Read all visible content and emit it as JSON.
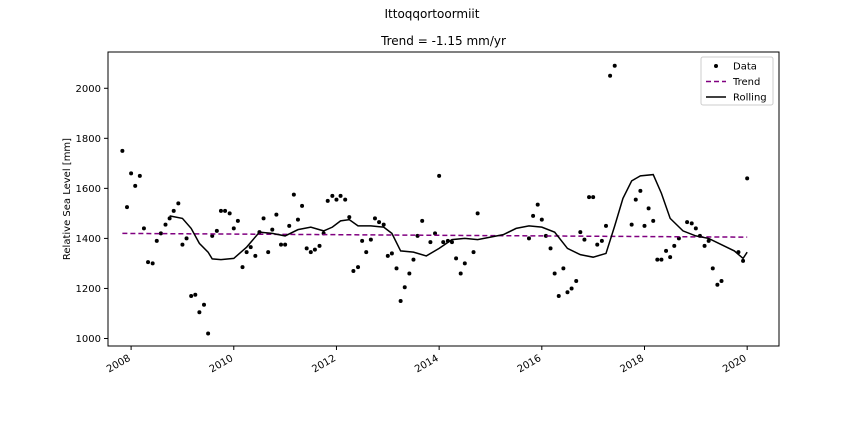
{
  "figure": {
    "suptitle": "Ittoqqortoormiit",
    "title": "Trend = -1.15 mm/yr"
  },
  "chart_data": {
    "type": "scatter",
    "title": "Trend = -1.15 mm/yr",
    "xlabel": "",
    "ylabel": "Relative Sea Level [mm]",
    "x_axis": {
      "kind": "date",
      "ticks": [
        2008,
        2010,
        2012,
        2014,
        2016,
        2018,
        2020
      ],
      "tick_labels": [
        "2008",
        "2010",
        "2012",
        "2014",
        "2016",
        "2018",
        "2020"
      ],
      "xlim": [
        2007.55,
        2020.62
      ],
      "tick_label_rotation": 30
    },
    "y_axis": {
      "ticks": [
        1000,
        1200,
        1400,
        1600,
        1800,
        2000
      ],
      "tick_labels": [
        "1000",
        "1200",
        "1400",
        "1600",
        "1800",
        "2000"
      ],
      "ylim": [
        970,
        2145
      ]
    },
    "grid": false,
    "legend": {
      "placement": "top-right",
      "entries": [
        {
          "label": "Data",
          "marker": "dot",
          "color": "#000000"
        },
        {
          "label": "Trend",
          "line": "dashed",
          "color": "#800080"
        },
        {
          "label": "Rolling",
          "line": "solid",
          "color": "#000000"
        }
      ]
    },
    "series": [
      {
        "name": "Data",
        "style": "points",
        "color": "#000000",
        "points": [
          [
            2007.83,
            1750
          ],
          [
            2007.92,
            1525
          ],
          [
            2008.0,
            1660
          ],
          [
            2008.08,
            1610
          ],
          [
            2008.17,
            1650
          ],
          [
            2008.25,
            1440
          ],
          [
            2008.33,
            1305
          ],
          [
            2008.42,
            1300
          ],
          [
            2008.5,
            1390
          ],
          [
            2008.58,
            1420
          ],
          [
            2008.67,
            1455
          ],
          [
            2008.75,
            1480
          ],
          [
            2008.83,
            1510
          ],
          [
            2008.92,
            1540
          ],
          [
            2009.0,
            1375
          ],
          [
            2009.08,
            1400
          ],
          [
            2009.17,
            1170
          ],
          [
            2009.25,
            1175
          ],
          [
            2009.33,
            1105
          ],
          [
            2009.42,
            1135
          ],
          [
            2009.5,
            1020
          ],
          [
            2009.58,
            1410
          ],
          [
            2009.67,
            1430
          ],
          [
            2009.75,
            1510
          ],
          [
            2009.83,
            1510
          ],
          [
            2009.92,
            1500
          ],
          [
            2010.0,
            1440
          ],
          [
            2010.08,
            1470
          ],
          [
            2010.17,
            1285
          ],
          [
            2010.25,
            1345
          ],
          [
            2010.33,
            1365
          ],
          [
            2010.42,
            1330
          ],
          [
            2010.5,
            1425
          ],
          [
            2010.58,
            1480
          ],
          [
            2010.67,
            1345
          ],
          [
            2010.75,
            1435
          ],
          [
            2010.83,
            1495
          ],
          [
            2010.92,
            1375
          ],
          [
            2011.0,
            1375
          ],
          [
            2011.08,
            1450
          ],
          [
            2011.17,
            1575
          ],
          [
            2011.25,
            1475
          ],
          [
            2011.33,
            1530
          ],
          [
            2011.42,
            1360
          ],
          [
            2011.5,
            1345
          ],
          [
            2011.58,
            1355
          ],
          [
            2011.67,
            1370
          ],
          [
            2011.75,
            1420
          ],
          [
            2011.83,
            1550
          ],
          [
            2011.92,
            1570
          ],
          [
            2012.0,
            1555
          ],
          [
            2012.08,
            1570
          ],
          [
            2012.17,
            1555
          ],
          [
            2012.25,
            1485
          ],
          [
            2012.33,
            1270
          ],
          [
            2012.42,
            1285
          ],
          [
            2012.5,
            1390
          ],
          [
            2012.58,
            1345
          ],
          [
            2012.67,
            1395
          ],
          [
            2012.75,
            1480
          ],
          [
            2012.83,
            1465
          ],
          [
            2012.92,
            1455
          ],
          [
            2013.0,
            1330
          ],
          [
            2013.08,
            1340
          ],
          [
            2013.17,
            1280
          ],
          [
            2013.25,
            1150
          ],
          [
            2013.33,
            1205
          ],
          [
            2013.42,
            1260
          ],
          [
            2013.5,
            1315
          ],
          [
            2013.58,
            1410
          ],
          [
            2013.67,
            1470
          ],
          [
            2013.83,
            1385
          ],
          [
            2013.92,
            1420
          ],
          [
            2014.0,
            1650
          ],
          [
            2014.08,
            1385
          ],
          [
            2014.17,
            1390
          ],
          [
            2014.25,
            1385
          ],
          [
            2014.33,
            1320
          ],
          [
            2014.42,
            1260
          ],
          [
            2014.5,
            1300
          ],
          [
            2014.67,
            1345
          ],
          [
            2014.75,
            1500
          ],
          [
            2015.75,
            1400
          ],
          [
            2015.83,
            1490
          ],
          [
            2015.92,
            1535
          ],
          [
            2016.0,
            1475
          ],
          [
            2016.08,
            1410
          ],
          [
            2016.17,
            1360
          ],
          [
            2016.25,
            1260
          ],
          [
            2016.33,
            1170
          ],
          [
            2016.42,
            1280
          ],
          [
            2016.5,
            1185
          ],
          [
            2016.58,
            1200
          ],
          [
            2016.67,
            1230
          ],
          [
            2016.75,
            1425
          ],
          [
            2016.83,
            1395
          ],
          [
            2016.92,
            1565
          ],
          [
            2017.0,
            1565
          ],
          [
            2017.08,
            1375
          ],
          [
            2017.17,
            1390
          ],
          [
            2017.25,
            1450
          ],
          [
            2017.33,
            2050
          ],
          [
            2017.42,
            2090
          ],
          [
            2017.75,
            1455
          ],
          [
            2017.83,
            1555
          ],
          [
            2017.92,
            1590
          ],
          [
            2018.0,
            1450
          ],
          [
            2018.08,
            1520
          ],
          [
            2018.17,
            1470
          ],
          [
            2018.25,
            1315
          ],
          [
            2018.33,
            1315
          ],
          [
            2018.42,
            1350
          ],
          [
            2018.5,
            1325
          ],
          [
            2018.58,
            1370
          ],
          [
            2018.67,
            1400
          ],
          [
            2018.83,
            1465
          ],
          [
            2018.92,
            1460
          ],
          [
            2019.0,
            1440
          ],
          [
            2019.08,
            1410
          ],
          [
            2019.17,
            1370
          ],
          [
            2019.25,
            1390
          ],
          [
            2019.33,
            1280
          ],
          [
            2019.42,
            1215
          ],
          [
            2019.5,
            1230
          ],
          [
            2019.83,
            1345
          ],
          [
            2019.92,
            1310
          ],
          [
            2020.0,
            1640
          ]
        ]
      },
      {
        "name": "Trend",
        "style": "dashed",
        "color": "#800080",
        "points": [
          [
            2007.83,
            1420
          ],
          [
            2020.0,
            1405
          ]
        ]
      },
      {
        "name": "Rolling",
        "style": "line",
        "color": "#000000",
        "points": [
          [
            2008.75,
            1490
          ],
          [
            2009.0,
            1480
          ],
          [
            2009.17,
            1440
          ],
          [
            2009.33,
            1380
          ],
          [
            2009.5,
            1345
          ],
          [
            2009.58,
            1318
          ],
          [
            2009.75,
            1315
          ],
          [
            2010.0,
            1320
          ],
          [
            2010.25,
            1365
          ],
          [
            2010.5,
            1425
          ],
          [
            2010.75,
            1420
          ],
          [
            2011.0,
            1410
          ],
          [
            2011.25,
            1435
          ],
          [
            2011.5,
            1445
          ],
          [
            2011.75,
            1430
          ],
          [
            2011.92,
            1445
          ],
          [
            2012.08,
            1470
          ],
          [
            2012.25,
            1475
          ],
          [
            2012.42,
            1450
          ],
          [
            2012.67,
            1450
          ],
          [
            2012.92,
            1445
          ],
          [
            2013.08,
            1420
          ],
          [
            2013.25,
            1350
          ],
          [
            2013.5,
            1345
          ],
          [
            2013.75,
            1330
          ],
          [
            2014.0,
            1360
          ],
          [
            2014.25,
            1395
          ],
          [
            2014.5,
            1400
          ],
          [
            2014.75,
            1395
          ],
          [
            2015.0,
            1405
          ],
          [
            2015.25,
            1415
          ],
          [
            2015.5,
            1440
          ],
          [
            2015.75,
            1450
          ],
          [
            2016.0,
            1445
          ],
          [
            2016.25,
            1425
          ],
          [
            2016.5,
            1360
          ],
          [
            2016.75,
            1335
          ],
          [
            2017.0,
            1325
          ],
          [
            2017.25,
            1340
          ],
          [
            2017.42,
            1450
          ],
          [
            2017.58,
            1560
          ],
          [
            2017.75,
            1630
          ],
          [
            2017.92,
            1650
          ],
          [
            2018.17,
            1655
          ],
          [
            2018.33,
            1580
          ],
          [
            2018.5,
            1480
          ],
          [
            2018.75,
            1430
          ],
          [
            2019.0,
            1410
          ],
          [
            2019.25,
            1400
          ],
          [
            2019.5,
            1375
          ],
          [
            2019.75,
            1350
          ],
          [
            2019.92,
            1320
          ],
          [
            2020.0,
            1345
          ]
        ]
      }
    ]
  }
}
